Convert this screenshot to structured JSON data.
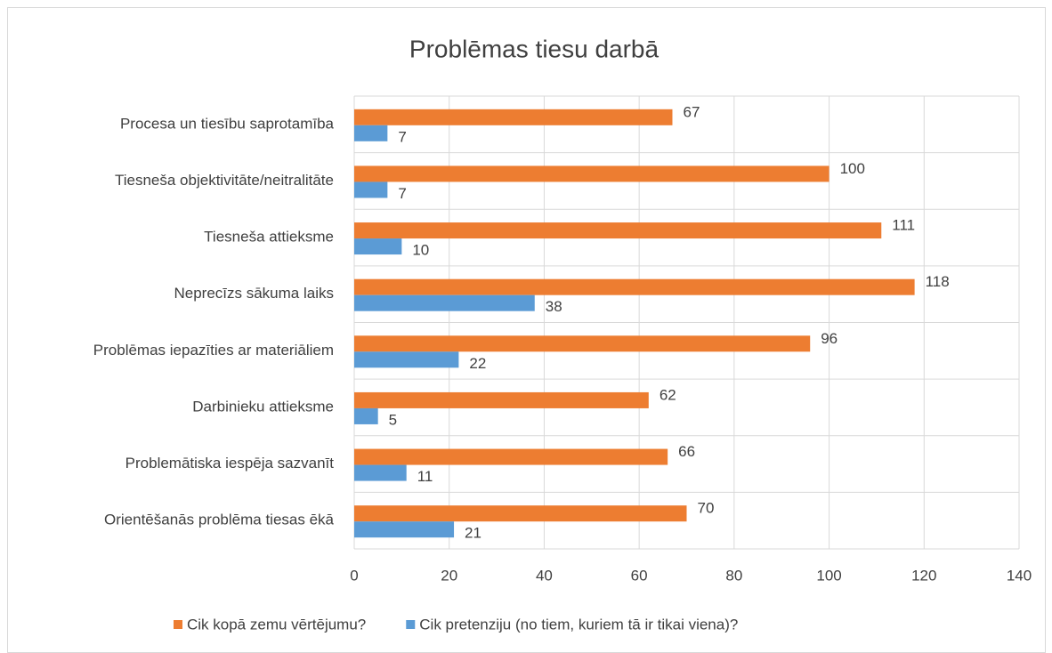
{
  "chart_data": {
    "type": "barh",
    "title": "Problēmas tiesu darbā",
    "categories": [
      "Procesa un tiesību saprotamība",
      "Tiesneša objektivitāte/neitralitāte",
      "Tiesneša attieksme",
      "Neprecīzs sākuma laiks",
      "Problēmas iepazīties ar materiāliem",
      "Darbinieku attieksme",
      "Problemātiska iespēja sazvanīt",
      "Orientēšanās problēma tiesas ēkā"
    ],
    "series": [
      {
        "name": "Cik kopā zemu vērtējumu?",
        "color": "#ed7d31",
        "values": [
          67,
          100,
          111,
          118,
          96,
          62,
          66,
          70
        ]
      },
      {
        "name": "Cik pretenziju (no tiem, kuriem tā ir tikai viena)?",
        "color": "#5b9bd5",
        "values": [
          7,
          7,
          10,
          38,
          22,
          5,
          11,
          21
        ]
      }
    ],
    "xlim": [
      0,
      140
    ],
    "xticks": [
      0,
      20,
      40,
      60,
      80,
      100,
      120,
      140
    ],
    "grid": true,
    "legend": "bottom"
  }
}
